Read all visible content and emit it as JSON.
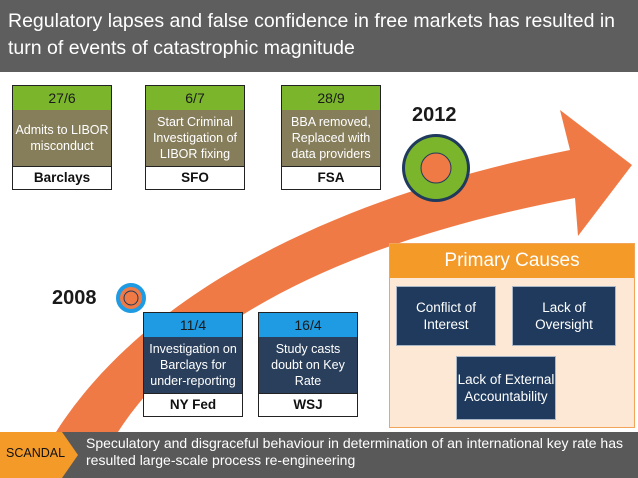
{
  "title": "Regulatory lapses and false confidence in free markets has resulted in turn of events of catastrophic magnitude",
  "years": {
    "start": "2008",
    "end": "2012"
  },
  "top_events": [
    {
      "date": "27/6",
      "description": "Admits to LIBOR misconduct",
      "org": "Barclays"
    },
    {
      "date": "6/7",
      "description": "Start Criminal Investigation of LIBOR fixing",
      "org": "SFO"
    },
    {
      "date": "28/9",
      "description": "BBA removed, Replaced with data providers",
      "org": "FSA"
    }
  ],
  "bottom_events": [
    {
      "date": "11/4",
      "description": "Investigation on Barclays for under-reporting",
      "org": "NY Fed"
    },
    {
      "date": "16/4",
      "description": "Study casts doubt on Key Rate",
      "org": "WSJ"
    }
  ],
  "primary_causes": {
    "title": "Primary Causes",
    "items": [
      "Conflict of Interest",
      "Lack of Oversight",
      "Lack of External Accountability"
    ]
  },
  "footer": {
    "tag": "SCANDAL",
    "text": "Speculatory and disgraceful behaviour in determination of an international key rate has resulted large-scale process re-engineering"
  },
  "colors": {
    "arrow": "#f07a45",
    "green": "#7ab52b",
    "olive": "#867d5b",
    "blue": "#1f9be3",
    "navy": "#2a3f5c",
    "orange": "#f39a29",
    "gray": "#5e5e5e"
  }
}
